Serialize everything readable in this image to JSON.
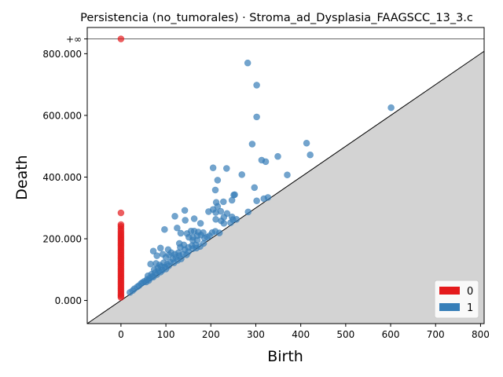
{
  "chart_data": {
    "type": "scatter",
    "title": "Persistencia (no_tumorales) · Stroma_ad_Dysplasia_FAAGSCC_13_3.c",
    "xlabel": "Birth",
    "ylabel": "Death",
    "xlim": [
      -75,
      808
    ],
    "ylim": [
      -75,
      885
    ],
    "inf_value": 848,
    "inf_label": "+∞",
    "x_ticks": [
      0,
      100,
      200,
      300,
      400,
      500,
      600,
      700,
      800
    ],
    "x_tick_labels": [
      "0",
      "100",
      "200",
      "300",
      "400",
      "500",
      "600",
      "700",
      "800"
    ],
    "y_ticks": [
      0,
      200,
      400,
      600,
      800
    ],
    "y_tick_labels": [
      "0.000",
      "200.000",
      "400.000",
      "600.000",
      "800.000"
    ],
    "grid": false,
    "legend_position": "bottom-right",
    "legend": [
      {
        "label": "0",
        "color": "#e41a1c"
      },
      {
        "label": "1",
        "color": "#377eb8"
      }
    ],
    "series": [
      {
        "name": "0",
        "color": "#e41a1c",
        "points": [
          [
            0,
            848
          ],
          [
            0,
            284
          ],
          [
            0,
            246
          ],
          [
            0,
            240
          ],
          [
            0,
            232
          ],
          [
            0,
            225
          ],
          [
            0,
            218
          ],
          [
            0,
            212
          ],
          [
            0,
            206
          ],
          [
            0,
            200
          ],
          [
            0,
            194
          ],
          [
            0,
            188
          ],
          [
            0,
            182
          ],
          [
            0,
            176
          ],
          [
            0,
            170
          ],
          [
            0,
            164
          ],
          [
            0,
            158
          ],
          [
            0,
            152
          ],
          [
            0,
            146
          ],
          [
            0,
            140
          ],
          [
            0,
            134
          ],
          [
            0,
            128
          ],
          [
            0,
            122
          ],
          [
            0,
            116
          ],
          [
            0,
            110
          ],
          [
            0,
            104
          ],
          [
            0,
            98
          ],
          [
            0,
            92
          ],
          [
            0,
            86
          ],
          [
            0,
            80
          ],
          [
            0,
            74
          ],
          [
            0,
            68
          ],
          [
            0,
            62
          ],
          [
            0,
            56
          ],
          [
            0,
            50
          ],
          [
            0,
            44
          ],
          [
            0,
            38
          ],
          [
            0,
            32
          ],
          [
            0,
            26
          ],
          [
            0,
            20
          ],
          [
            0,
            15
          ],
          [
            0,
            10
          ]
        ]
      },
      {
        "name": "1",
        "color": "#377eb8",
        "points": [
          [
            282,
            770
          ],
          [
            302,
            698
          ],
          [
            302,
            595
          ],
          [
            601,
            625
          ],
          [
            413,
            510
          ],
          [
            421,
            472
          ],
          [
            292,
            507
          ],
          [
            349,
            467
          ],
          [
            313,
            455
          ],
          [
            322,
            450
          ],
          [
            370,
            407
          ],
          [
            269,
            408
          ],
          [
            205,
            430
          ],
          [
            235,
            428
          ],
          [
            215,
            390
          ],
          [
            210,
            358
          ],
          [
            297,
            366
          ],
          [
            302,
            323
          ],
          [
            318,
            330
          ],
          [
            327,
            334
          ],
          [
            253,
            343
          ],
          [
            251,
            342
          ],
          [
            228,
            320
          ],
          [
            247,
            325
          ],
          [
            212,
            318
          ],
          [
            215,
            305
          ],
          [
            205,
            295
          ],
          [
            195,
            288
          ],
          [
            211,
            285
          ],
          [
            222,
            289
          ],
          [
            236,
            282
          ],
          [
            247,
            271
          ],
          [
            257,
            263
          ],
          [
            211,
            263
          ],
          [
            223,
            258
          ],
          [
            229,
            250
          ],
          [
            244,
            252
          ],
          [
            283,
            287
          ],
          [
            142,
            292
          ],
          [
            120,
            273
          ],
          [
            143,
            260
          ],
          [
            163,
            265
          ],
          [
            177,
            250
          ],
          [
            97,
            230
          ],
          [
            125,
            235
          ],
          [
            133,
            218
          ],
          [
            147,
            217
          ],
          [
            156,
            225
          ],
          [
            163,
            225
          ],
          [
            172,
            222
          ],
          [
            183,
            220
          ],
          [
            197,
            210
          ],
          [
            203,
            220
          ],
          [
            210,
            224
          ],
          [
            219,
            219
          ],
          [
            229,
            270
          ],
          [
            249,
            262
          ],
          [
            151,
            205
          ],
          [
            160,
            205
          ],
          [
            170,
            210
          ],
          [
            178,
            212
          ],
          [
            186,
            202
          ],
          [
            192,
            205
          ],
          [
            160,
            195
          ],
          [
            170,
            195
          ],
          [
            130,
            185
          ],
          [
            140,
            180
          ],
          [
            150,
            172
          ],
          [
            158,
            178
          ],
          [
            166,
            180
          ],
          [
            176,
            175
          ],
          [
            184,
            185
          ],
          [
            132,
            172
          ],
          [
            142,
            165
          ],
          [
            150,
            158
          ],
          [
            160,
            168
          ],
          [
            168,
            170
          ],
          [
            72,
            160
          ],
          [
            88,
            170
          ],
          [
            105,
            165
          ],
          [
            112,
            155
          ],
          [
            120,
            150
          ],
          [
            128,
            155
          ],
          [
            138,
            150
          ],
          [
            146,
            148
          ],
          [
            80,
            145
          ],
          [
            93,
            150
          ],
          [
            100,
            140
          ],
          [
            107,
            148
          ],
          [
            115,
            135
          ],
          [
            122,
            140
          ],
          [
            130,
            145
          ],
          [
            66,
            118
          ],
          [
            78,
            120
          ],
          [
            86,
            115
          ],
          [
            95,
            122
          ],
          [
            103,
            118
          ],
          [
            110,
            125
          ],
          [
            118,
            122
          ],
          [
            126,
            130
          ],
          [
            134,
            135
          ],
          [
            74,
            100
          ],
          [
            82,
            105
          ],
          [
            90,
            110
          ],
          [
            98,
            108
          ],
          [
            106,
            112
          ],
          [
            60,
            80
          ],
          [
            68,
            85
          ],
          [
            76,
            90
          ],
          [
            84,
            95
          ],
          [
            92,
            98
          ],
          [
            100,
            102
          ],
          [
            45,
            55
          ],
          [
            52,
            62
          ],
          [
            58,
            68
          ],
          [
            64,
            72
          ],
          [
            70,
            78
          ],
          [
            30,
            38
          ],
          [
            36,
            44
          ],
          [
            40,
            48
          ],
          [
            48,
            58
          ],
          [
            20,
            26
          ],
          [
            26,
            32
          ],
          [
            56,
            60
          ],
          [
            62,
            65
          ],
          [
            72,
            76
          ],
          [
            80,
            84
          ],
          [
            88,
            92
          ]
        ]
      }
    ]
  }
}
